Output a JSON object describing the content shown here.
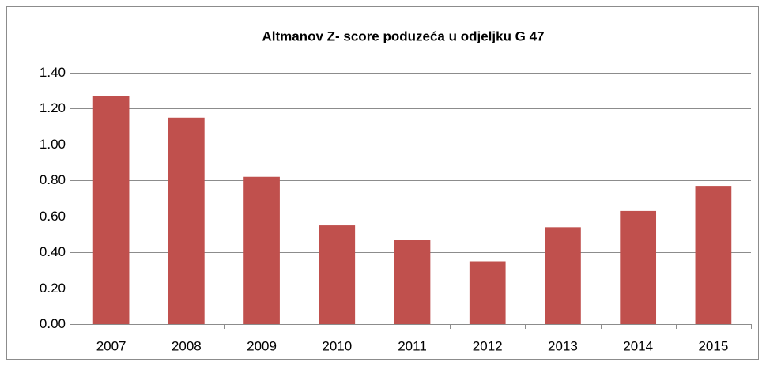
{
  "chart_data": {
    "type": "bar",
    "title": "Altmanov Z- score poduzeća u odjeljku G 47",
    "categories": [
      "2007",
      "2008",
      "2009",
      "2010",
      "2011",
      "2012",
      "2013",
      "2014",
      "2015"
    ],
    "values": [
      1.27,
      1.15,
      0.82,
      0.55,
      0.47,
      0.35,
      0.54,
      0.63,
      0.77
    ],
    "color": "#c0504d",
    "ylim": [
      0,
      1.4
    ],
    "yticks": [
      {
        "value": 0,
        "label": "0.00"
      },
      {
        "value": 0.2,
        "label": "0.20"
      },
      {
        "value": 0.4,
        "label": "0.40"
      },
      {
        "value": 0.6,
        "label": "0.60"
      },
      {
        "value": 0.8,
        "label": "0.80"
      },
      {
        "value": 1,
        "label": "1.00"
      },
      {
        "value": 1.2,
        "label": "1.20"
      },
      {
        "value": 1.4,
        "label": "1.40"
      }
    ],
    "grid": true
  }
}
